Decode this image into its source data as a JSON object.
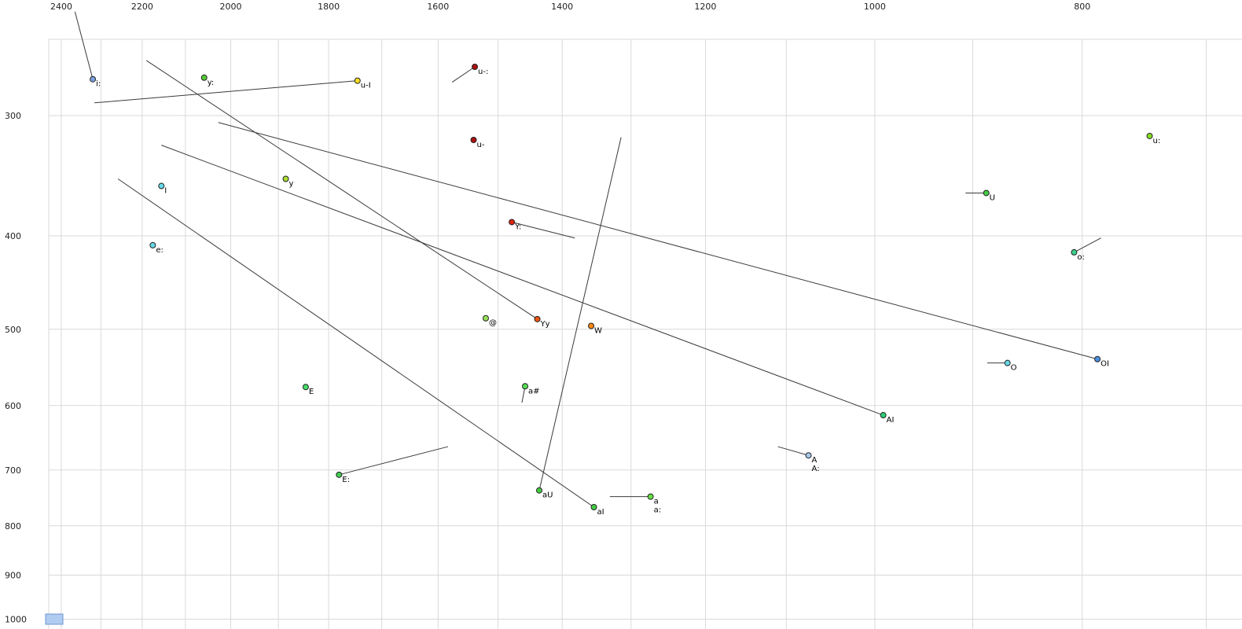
{
  "chart_data": {
    "type": "scatter",
    "title": "",
    "description": "Vowel formant chart: F2 (Hz) on reversed log x-axis, F1 (Hz) on reversed-orientation log y-axis; points are vowel phonemes, lines show diphthong glide trajectories",
    "x_axis": {
      "scale": "log",
      "reversed": true,
      "ticks": [
        2400,
        2200,
        2000,
        1800,
        1600,
        1400,
        1200,
        1000,
        800
      ],
      "gridlines": [
        2400,
        2300,
        2200,
        2100,
        2000,
        1900,
        1800,
        1700,
        1600,
        1500,
        1400,
        1300,
        1200,
        1100,
        1000,
        900,
        800,
        700
      ],
      "range_hint": [
        2560,
        675
      ]
    },
    "y_axis": {
      "scale": "log",
      "ticks": [
        300,
        400,
        500,
        600,
        700,
        800,
        900,
        1000
      ],
      "gridlines": [
        250,
        300,
        400,
        500,
        600,
        700,
        800,
        900,
        1000
      ],
      "range_hint": [
        230,
        1020
      ]
    },
    "grid_color": "#d9d9d9",
    "line_color": "#3a3a3a",
    "points": [
      {
        "label": "i:",
        "f2": 2320,
        "f1": 275,
        "color": "#7b9fe0",
        "line_to": [
          2365,
          234
        ]
      },
      {
        "label": "y:",
        "f2": 2058,
        "f1": 274,
        "color": "#55cc33"
      },
      {
        "label": "u-I",
        "f2": 1745,
        "f1": 276,
        "color": "#ffdd22",
        "line_to": [
          2316,
          291
        ]
      },
      {
        "label": "u-:",
        "f2": 1538,
        "f1": 267,
        "color": "#aa1111",
        "line_to": [
          1576,
          277
        ]
      },
      {
        "label": "u-",
        "f2": 1540,
        "f1": 318,
        "color": "#aa1111"
      },
      {
        "label": "u:",
        "f2": 744,
        "f1": 315,
        "color": "#88dd22"
      },
      {
        "label": "y",
        "f2": 1885,
        "f1": 349,
        "color": "#aadd33"
      },
      {
        "label": "U",
        "f2": 887,
        "f1": 361,
        "color": "#44cc44",
        "line_to": [
          907,
          361
        ]
      },
      {
        "label": "I",
        "f2": 2155,
        "f1": 355,
        "color": "#66d9e8"
      },
      {
        "label": "e:",
        "f2": 2175,
        "f1": 409,
        "color": "#66d9e8"
      },
      {
        "label": "o:",
        "f2": 807,
        "f1": 416,
        "color": "#3dd08a",
        "line_to": [
          784,
          402
        ]
      },
      {
        "label": "Y:",
        "f2": 1478,
        "f1": 387,
        "color": "#dd2211",
        "line_to": [
          1381,
          402
        ]
      },
      {
        "label": "@",
        "f2": 1520,
        "f1": 487,
        "color": "#99e055"
      },
      {
        "label": "Yy",
        "f2": 1438,
        "f1": 488,
        "color": "#ee5511",
        "line_to": [
          2190,
          263
        ]
      },
      {
        "label": "W",
        "f2": 1357,
        "f1": 496,
        "color": "#ff8811"
      },
      {
        "label": "O",
        "f2": 867,
        "f1": 542,
        "color": "#66d9e8",
        "line_to": [
          886,
          542
        ]
      },
      {
        "label": "OI",
        "f2": 787,
        "f1": 537,
        "color": "#4a90e2",
        "line_to": [
          2027,
          305
        ]
      },
      {
        "label": "E",
        "f2": 1845,
        "f1": 574,
        "color": "#44dd66"
      },
      {
        "label": "a#",
        "f2": 1457,
        "f1": 573,
        "color": "#55dd55",
        "line_to": [
          1462,
          596
        ]
      },
      {
        "label": "AI",
        "f2": 991,
        "f1": 614,
        "color": "#33cc77",
        "line_to": [
          2155,
          322
        ]
      },
      {
        "label": "A",
        "label2": "A:",
        "f2": 1074,
        "f1": 676,
        "color": "#a8c8ee",
        "line_to": [
          1110,
          662
        ]
      },
      {
        "label": "E:",
        "f2": 1780,
        "f1": 708,
        "color": "#44cc55",
        "line_to": [
          1583,
          662
        ]
      },
      {
        "label": "aU",
        "f2": 1435,
        "f1": 735,
        "color": "#44cc44",
        "line_to": [
          1314,
          316
        ]
      },
      {
        "label": "aI",
        "f2": 1353,
        "f1": 765,
        "color": "#44cc44",
        "line_to": [
          2258,
          349
        ]
      },
      {
        "label": "a",
        "label2": "a:",
        "f2": 1273,
        "f1": 746,
        "color": "#66dd44",
        "line_to": [
          1330,
          746
        ]
      }
    ],
    "selection_marker": {
      "fill": "#b0ccf0",
      "stroke": "#6a93cf"
    }
  }
}
